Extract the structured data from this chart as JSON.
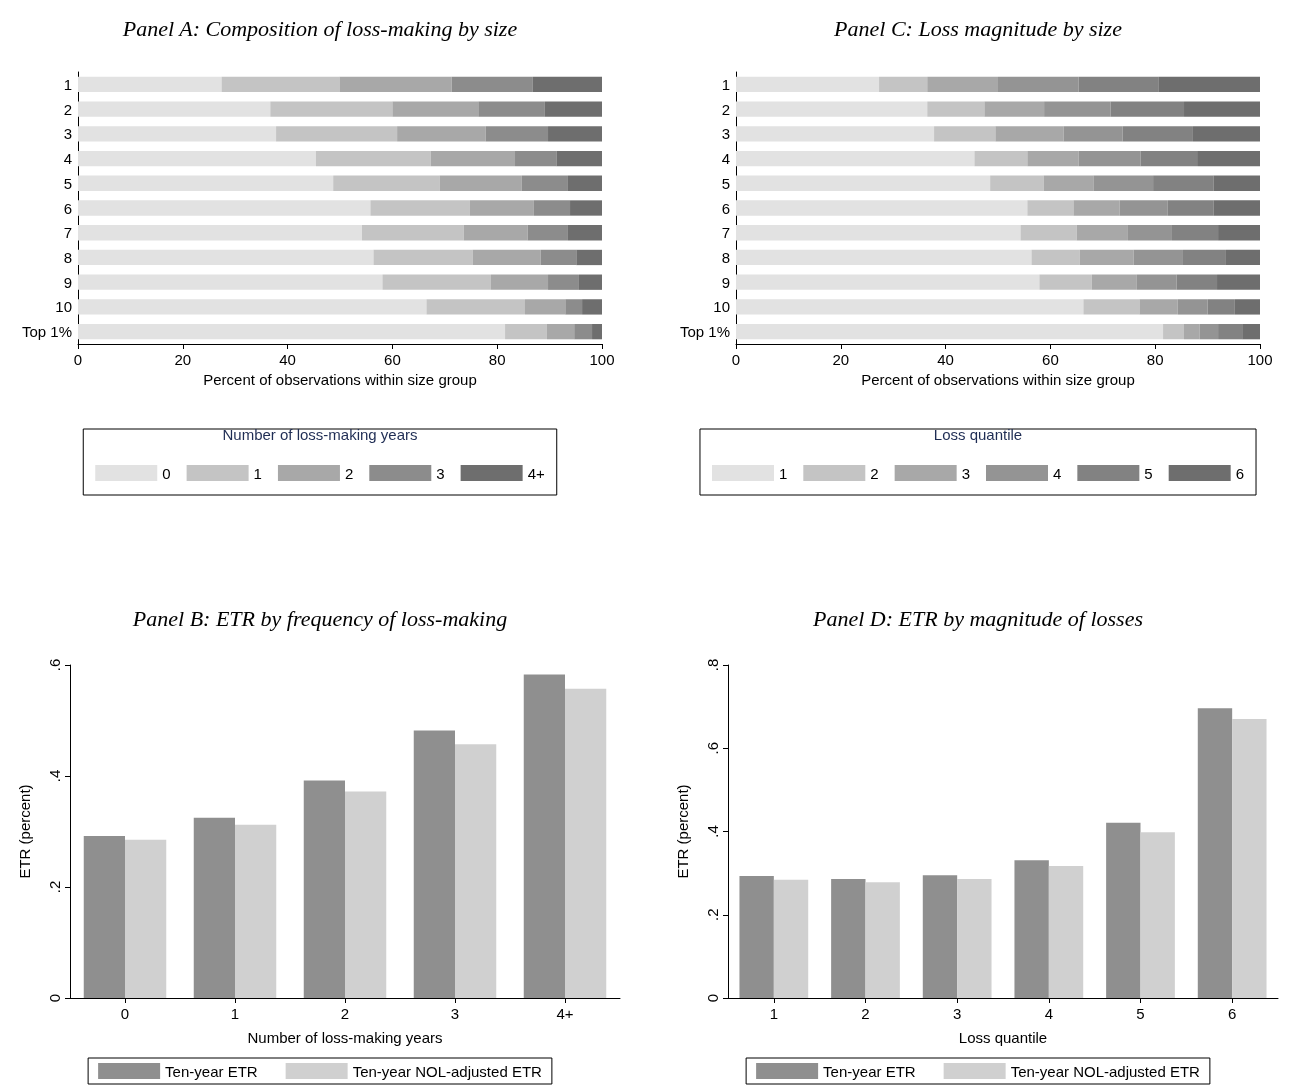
{
  "chart_data": [
    {
      "type": "bar",
      "title": "Panel A: Composition of loss-making by size",
      "xlabel": "Percent of observations within size group",
      "legend_title": "Number of loss-making years",
      "orientation": "horizontal",
      "stacked": true,
      "legend": "bottom",
      "grid": false,
      "categories": [
        "1",
        "2",
        "3",
        "4",
        "5",
        "6",
        "7",
        "8",
        "9",
        "10",
        "Top 1%"
      ],
      "xlim": [
        0,
        100
      ],
      "xticks": [
        0,
        20,
        40,
        60,
        80,
        100
      ],
      "series": [
        {
          "name": "0",
          "color": "#e2e2e2",
          "values": [
            27.4,
            36.7,
            37.8,
            45.4,
            48.7,
            55.8,
            54.2,
            56.4,
            58.1,
            66.5,
            81.5
          ]
        },
        {
          "name": "1",
          "color": "#c4c4c4",
          "values": [
            22.5,
            23.3,
            23.1,
            21.9,
            20.3,
            19.0,
            19.4,
            18.9,
            20.7,
            18.8,
            8.0
          ]
        },
        {
          "name": "2",
          "color": "#a8a8a8",
          "values": [
            21.4,
            16.4,
            16.9,
            16.1,
            15.7,
            12.2,
            12.2,
            13.0,
            10.9,
            7.7,
            5.2
          ]
        },
        {
          "name": "3",
          "color": "#8c8c8c",
          "values": [
            15.5,
            12.7,
            11.9,
            7.9,
            8.8,
            6.9,
            7.7,
            6.8,
            5.9,
            3.2,
            3.4
          ]
        },
        {
          "name": "4+",
          "color": "#6e6e6e",
          "values": [
            13.2,
            10.9,
            10.3,
            8.7,
            6.5,
            6.1,
            6.5,
            4.9,
            4.4,
            3.8,
            1.9
          ]
        }
      ]
    },
    {
      "type": "bar",
      "title": "Panel C: Loss magnitude by size",
      "xlabel": "Percent of observations within size group",
      "legend_title": "Loss quantile",
      "orientation": "horizontal",
      "stacked": true,
      "legend": "bottom",
      "grid": false,
      "categories": [
        "1",
        "2",
        "3",
        "4",
        "5",
        "6",
        "7",
        "8",
        "9",
        "10",
        "Top 1%"
      ],
      "xlim": [
        0,
        100
      ],
      "xticks": [
        0,
        20,
        40,
        60,
        80,
        100
      ],
      "series": [
        {
          "name": "1",
          "color": "#e2e2e2",
          "values": [
            27.3,
            36.5,
            37.8,
            45.5,
            48.5,
            55.6,
            54.3,
            56.4,
            57.9,
            66.3,
            81.5
          ]
        },
        {
          "name": "2",
          "color": "#c4c4c4",
          "values": [
            9.2,
            10.9,
            11.7,
            10.1,
            10.2,
            8.8,
            10.7,
            9.2,
            10.0,
            10.7,
            4.0
          ]
        },
        {
          "name": "3",
          "color": "#a8a8a8",
          "values": [
            13.5,
            11.4,
            13.0,
            9.8,
            9.5,
            8.8,
            9.8,
            10.3,
            8.6,
            7.3,
            3.0
          ]
        },
        {
          "name": "4",
          "color": "#949494",
          "values": [
            15.4,
            12.7,
            11.3,
            11.8,
            11.4,
            9.2,
            8.4,
            9.4,
            7.6,
            5.7,
            3.5
          ]
        },
        {
          "name": "5",
          "color": "#828282",
          "values": [
            15.3,
            14.0,
            13.4,
            10.8,
            11.5,
            8.7,
            8.8,
            8.2,
            7.7,
            5.2,
            4.6
          ]
        },
        {
          "name": "6",
          "color": "#6e6e6e",
          "values": [
            19.3,
            14.5,
            12.8,
            12.0,
            8.9,
            8.9,
            8.0,
            6.5,
            8.2,
            4.8,
            3.4
          ]
        }
      ]
    },
    {
      "type": "bar",
      "title": "Panel B: ETR by frequency of loss-making",
      "xlabel": "Number of loss-making years",
      "ylabel": "ETR (percent)",
      "legend": "bottom",
      "grid": false,
      "categories": [
        "0",
        "1",
        "2",
        "3",
        "4+"
      ],
      "ylim": [
        0,
        0.6
      ],
      "yticks": [
        0,
        {
          "value": 0.2,
          "label": ".2"
        },
        {
          "value": 0.4,
          "label": ".4"
        },
        {
          "value": 0.6,
          "label": ".6"
        }
      ],
      "series": [
        {
          "name": "Ten-year ETR",
          "color": "#8f8f8f",
          "values": [
            0.292,
            0.325,
            0.392,
            0.482,
            0.583
          ]
        },
        {
          "name": "Ten-year NOL-adjusted ETR",
          "color": "#d0d0d0",
          "values": [
            0.285,
            0.312,
            0.372,
            0.457,
            0.557
          ]
        }
      ]
    },
    {
      "type": "bar",
      "title": "Panel D: ETR by magnitude of losses",
      "xlabel": "Loss quantile",
      "ylabel": "ETR (percent)",
      "legend": "bottom",
      "grid": false,
      "categories": [
        "1",
        "2",
        "3",
        "4",
        "5",
        "6"
      ],
      "ylim": [
        0,
        0.8
      ],
      "yticks": [
        0,
        {
          "value": 0.2,
          "label": ".2"
        },
        {
          "value": 0.4,
          "label": ".4"
        },
        {
          "value": 0.6,
          "label": ".6"
        },
        {
          "value": 0.8,
          "label": ".8"
        }
      ],
      "series": [
        {
          "name": "Ten-year ETR",
          "color": "#8f8f8f",
          "values": [
            0.293,
            0.286,
            0.295,
            0.331,
            0.421,
            0.696
          ]
        },
        {
          "name": "Ten-year NOL-adjusted ETR",
          "color": "#d0d0d0",
          "values": [
            0.284,
            0.278,
            0.286,
            0.317,
            0.398,
            0.67
          ]
        }
      ]
    }
  ]
}
